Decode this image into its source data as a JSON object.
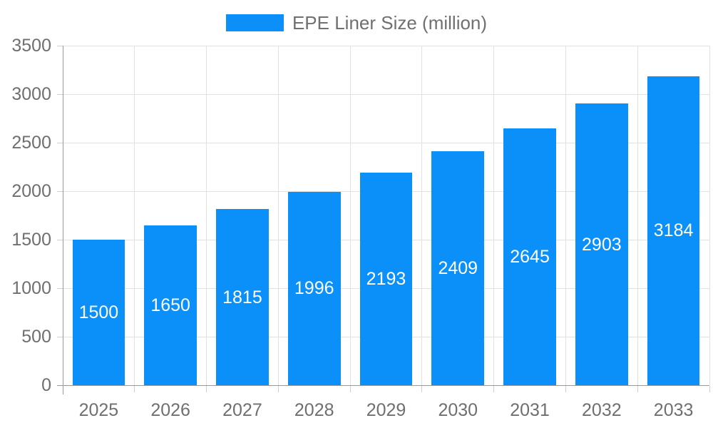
{
  "chart": {
    "legend": {
      "label": "EPE Liner Size (million)"
    },
    "colors": {
      "bar": "#0A90F8",
      "grid": "#E1E1E1",
      "axis": "#999999",
      "tick": "#CFCFCF",
      "axis_text": "#6F6F6F",
      "legend_text": "#707070",
      "bar_label_text": "#FFFFFF",
      "background": "#FFFFFF"
    }
  },
  "chart_data": {
    "type": "bar",
    "title": "",
    "categories": [
      "2025",
      "2026",
      "2027",
      "2028",
      "2029",
      "2030",
      "2031",
      "2032",
      "2033"
    ],
    "series": [
      {
        "name": "EPE Liner Size (million)",
        "values": [
          1500,
          1650,
          1815,
          1996,
          2193,
          2409,
          2645,
          2903,
          3184
        ]
      }
    ],
    "xlabel": "",
    "ylabel": "",
    "ylim": [
      0,
      3500
    ],
    "y_ticks": [
      0,
      500,
      1000,
      1500,
      2000,
      2500,
      3000,
      3500
    ],
    "grid": true,
    "legend_position": "top-center",
    "data_labels": "inside-center-vertical"
  }
}
